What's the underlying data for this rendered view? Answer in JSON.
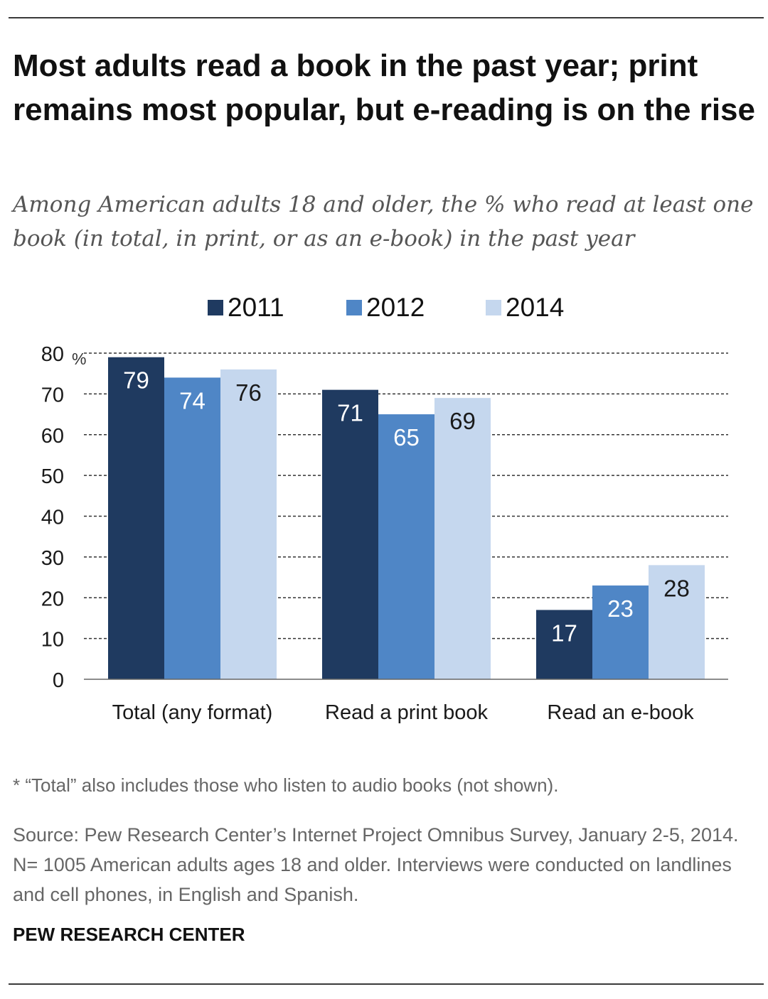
{
  "title": "Most adults read a book in the past year; print remains most popular, but e-reading is on the rise",
  "subtitle": "Among American adults 18 and older, the % who read at least one book (in total, in print, or as an e-book) in the past year",
  "legend": [
    {
      "label": "2011",
      "color": "#1f3a60"
    },
    {
      "label": "2012",
      "color": "#4f86c6"
    },
    {
      "label": "2014",
      "color": "#c5d7ee"
    }
  ],
  "chart_data": {
    "type": "bar",
    "categories": [
      "Total (any format)",
      "Read a print book",
      "Read an e-book"
    ],
    "series": [
      {
        "name": "2011",
        "values": [
          79,
          71,
          17
        ],
        "color": "#1f3a60",
        "label_color": "#ffffff"
      },
      {
        "name": "2012",
        "values": [
          74,
          65,
          23
        ],
        "color": "#4f86c6",
        "label_color": "#ffffff"
      },
      {
        "name": "2014",
        "values": [
          76,
          69,
          28
        ],
        "color": "#c5d7ee",
        "label_color": "#1a1a1a"
      }
    ],
    "ylim": [
      0,
      80
    ],
    "yticks": [
      0,
      10,
      20,
      30,
      40,
      50,
      60,
      70,
      80
    ],
    "y_unit": "%",
    "grid": "dashed",
    "legend_position": "top"
  },
  "note": "* “Total” also includes those who listen to audio books (not shown).",
  "source": "Source: Pew Research Center’s Internet Project Omnibus Survey, January 2-5, 2014. N= 1005 American adults ages 18 and older. Interviews were conducted on landlines and cell phones, in English and Spanish.",
  "brand": "PEW RESEARCH CENTER"
}
